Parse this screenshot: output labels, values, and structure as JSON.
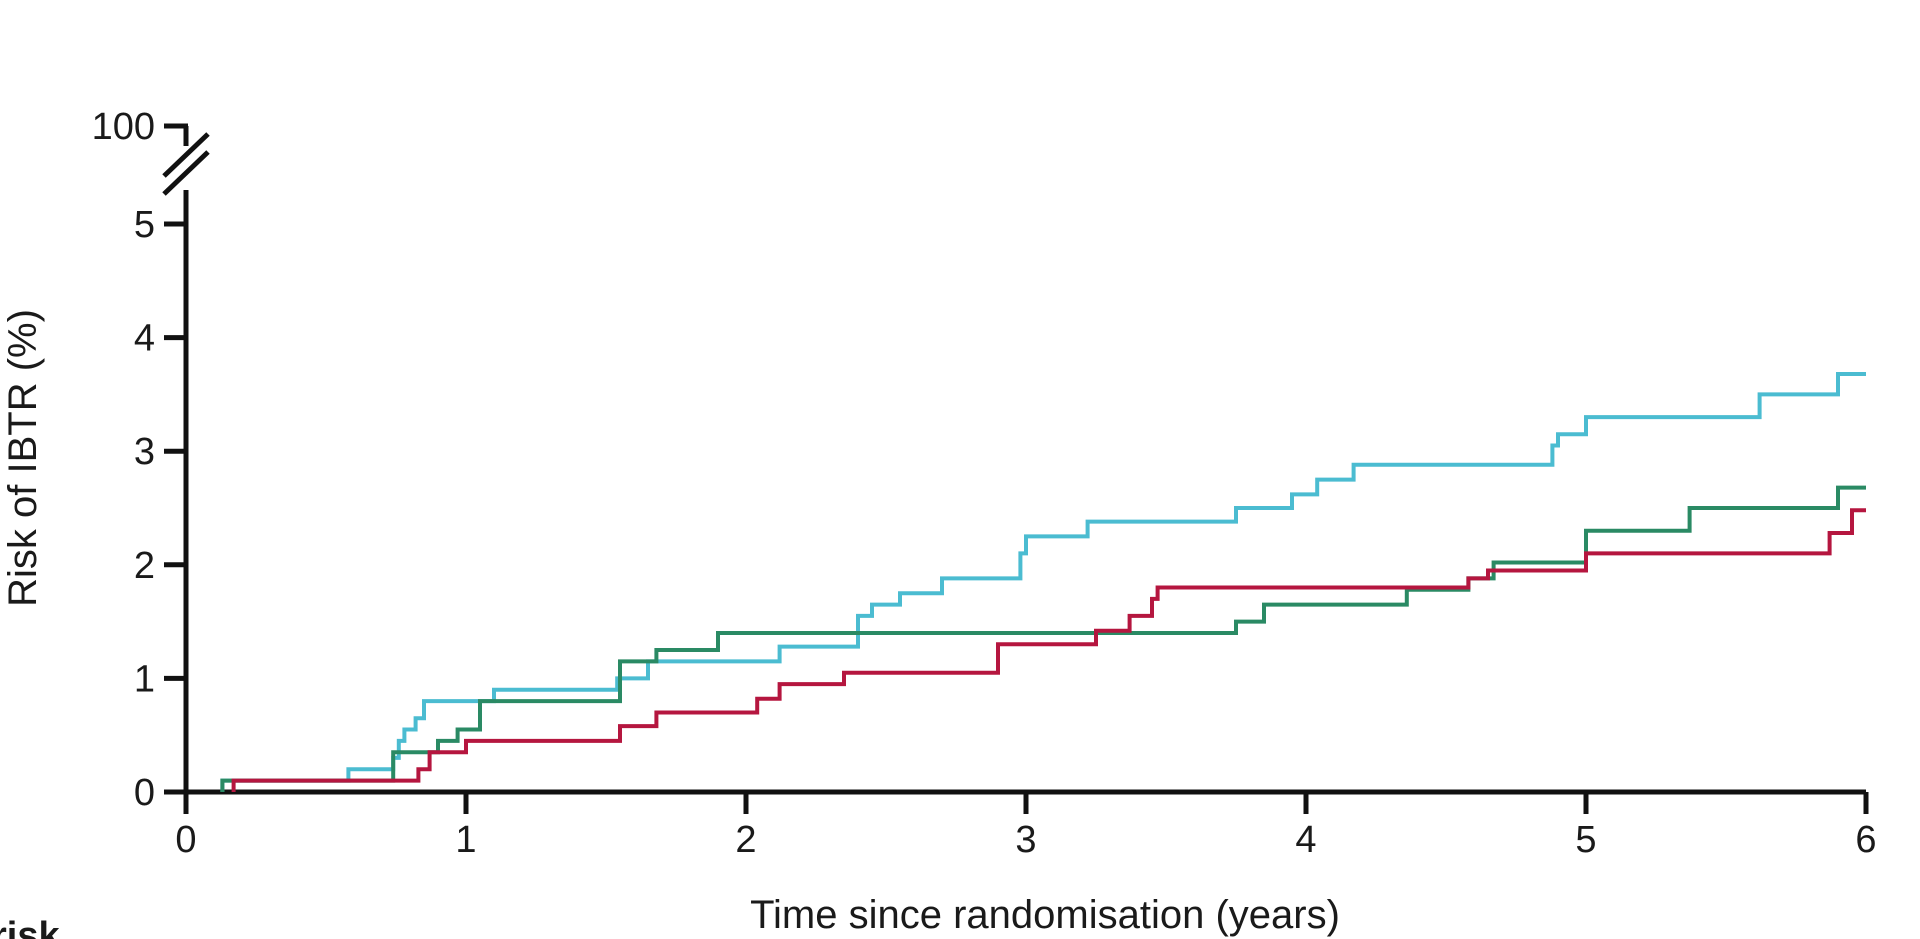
{
  "chart_data": {
    "type": "line",
    "step": true,
    "xlabel": "Time since randomisation (years)",
    "ylabel": "Risk of IBTR (%)",
    "xlim": [
      0,
      6
    ],
    "ylim": [
      0,
      5
    ],
    "y_axis_break": true,
    "y_break_top_label": "100",
    "x_ticks": [
      "0",
      "1",
      "2",
      "3",
      "4",
      "5",
      "6"
    ],
    "y_ticks": [
      "0",
      "1",
      "2",
      "3",
      "4",
      "5"
    ],
    "grid": false,
    "colors": {
      "series_1": "#4bbcd1",
      "series_2": "#2a8a64",
      "series_3": "#b5163f",
      "axis": "#111111"
    },
    "series": [
      {
        "color": "#4bbcd1",
        "x": [
          0.13,
          0.45,
          0.58,
          0.74,
          0.76,
          0.78,
          0.82,
          0.85,
          1.1,
          1.54,
          1.65,
          2.12,
          2.4,
          2.45,
          2.55,
          2.7,
          2.98,
          3.0,
          3.22,
          3.75,
          3.95,
          4.04,
          4.17,
          4.88,
          4.9,
          5.0,
          5.62,
          5.9,
          6.0
        ],
        "y": [
          0.1,
          0.1,
          0.2,
          0.3,
          0.45,
          0.55,
          0.65,
          0.8,
          0.9,
          1.0,
          1.15,
          1.28,
          1.55,
          1.65,
          1.75,
          1.88,
          2.1,
          2.25,
          2.38,
          2.5,
          2.62,
          2.75,
          2.88,
          3.05,
          3.15,
          3.3,
          3.5,
          3.68,
          3.68
        ]
      },
      {
        "color": "#2a8a64",
        "x": [
          0.13,
          0.7,
          0.74,
          0.9,
          0.97,
          1.05,
          1.55,
          1.68,
          1.9,
          3.25,
          3.75,
          3.85,
          4.36,
          4.58,
          4.67,
          5.0,
          5.37,
          5.9,
          6.0
        ],
        "y": [
          0.1,
          0.1,
          0.35,
          0.45,
          0.55,
          0.8,
          1.15,
          1.25,
          1.4,
          1.4,
          1.5,
          1.65,
          1.78,
          1.88,
          2.02,
          2.3,
          2.5,
          2.68,
          2.68
        ]
      },
      {
        "color": "#b5163f",
        "x": [
          0.17,
          0.7,
          0.83,
          0.87,
          1.0,
          1.55,
          1.68,
          2.04,
          2.12,
          2.35,
          2.9,
          3.25,
          3.37,
          3.45,
          3.47,
          4.58,
          4.65,
          5.0,
          5.87,
          5.95,
          6.0
        ],
        "y": [
          0.1,
          0.1,
          0.2,
          0.35,
          0.45,
          0.58,
          0.7,
          0.82,
          0.95,
          1.05,
          1.3,
          1.42,
          1.55,
          1.7,
          1.8,
          1.88,
          1.95,
          2.1,
          2.28,
          2.48,
          2.48
        ]
      }
    ]
  },
  "footer": {
    "cut_text": "risk"
  }
}
